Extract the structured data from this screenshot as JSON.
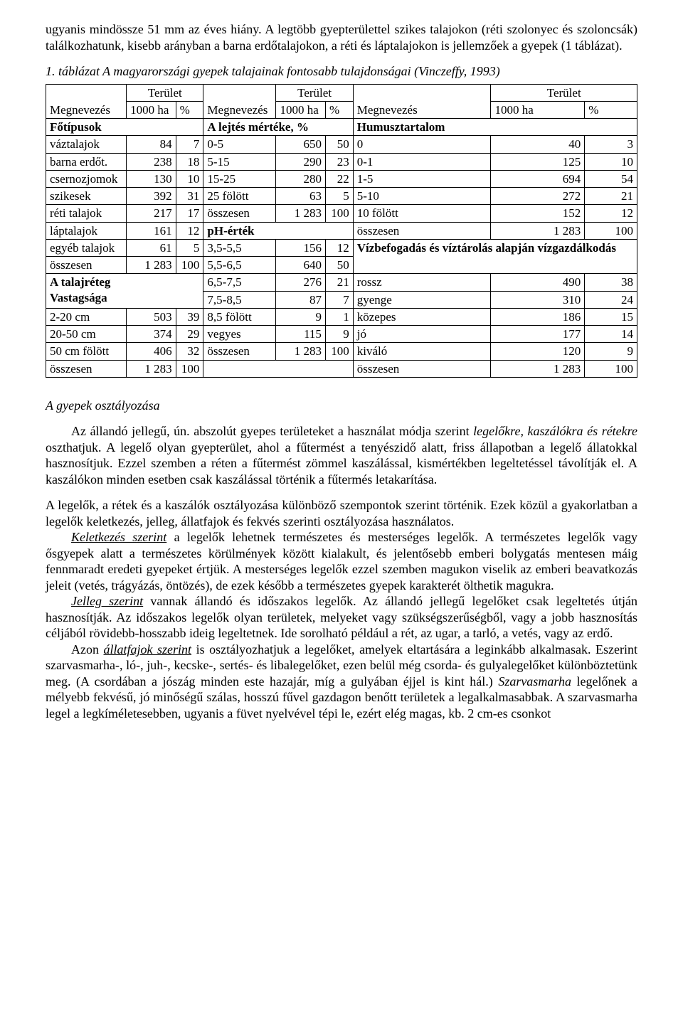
{
  "para_top": "ugyanis mindössze 51 mm az éves hiány. A legtöbb gyepterülettel szikes talajokon (réti szolonyec és szoloncsák) találkozhatunk, kisebb arányban a barna erdőtalajokon, a réti és láptalajokon is jellemzőek a gyepek (1 táblázat).",
  "table_caption": "1. táblázat  A magyarországi gyepek talajainak fontosabb tulajdonságai (Vinczeffy, 1993)",
  "hdr": {
    "terulet": "Terület",
    "megnevezes": "Megnevezés",
    "ezer_ha": "1000 ha",
    "szazalek": "%"
  },
  "sec1": {
    "title": "Főtípusok",
    "rows": [
      [
        "váztalajok",
        "84",
        "7"
      ],
      [
        "barna erdőt.",
        "238",
        "18"
      ],
      [
        "csernozjomok",
        "130",
        "10"
      ],
      [
        "szikesek",
        "392",
        "31"
      ],
      [
        "réti talajok",
        "217",
        "17"
      ],
      [
        "láptalajok",
        "161",
        "12"
      ],
      [
        "egyéb talajok",
        "61",
        "5"
      ],
      [
        "összesen",
        "1 283",
        "100"
      ]
    ],
    "sub_title": "A talajréteg\nVastagsága",
    "sub_rows": [
      [
        "2-20 cm",
        "503",
        "39"
      ],
      [
        "20-50 cm",
        "374",
        "29"
      ],
      [
        "50 cm fölött",
        "406",
        "32"
      ],
      [
        "összesen",
        "1 283",
        "100"
      ]
    ]
  },
  "sec2": {
    "title": "A lejtés mértéke, %",
    "rows": [
      [
        "0-5",
        "650",
        "50"
      ],
      [
        "5-15",
        "290",
        "23"
      ],
      [
        "15-25",
        "280",
        "22"
      ],
      [
        "25 fölött",
        "63",
        "5"
      ],
      [
        "összesen",
        "1 283",
        "100"
      ]
    ],
    "sub_title": "pH-érték",
    "sub_rows": [
      [
        "3,5-5,5",
        "156",
        "12"
      ],
      [
        "5,5-6,5",
        "640",
        "50"
      ],
      [
        "6,5-7,5",
        "276",
        "21"
      ],
      [
        "7,5-8,5",
        "87",
        "7"
      ],
      [
        "8,5 fölött",
        "9",
        "1"
      ],
      [
        "vegyes",
        "115",
        "9"
      ],
      [
        "összesen",
        "1 283",
        "100"
      ]
    ]
  },
  "sec3": {
    "title": "Humusztartalom",
    "rows": [
      [
        "0",
        "40",
        "3"
      ],
      [
        "0-1",
        "125",
        "10"
      ],
      [
        "1-5",
        "694",
        "54"
      ],
      [
        "5-10",
        "272",
        "21"
      ],
      [
        "10 fölött",
        "152",
        "12"
      ],
      [
        "összesen",
        "1 283",
        "100"
      ]
    ],
    "sub_title": "Vízbefogadás és víztárolás alapján vízgazdálkodás",
    "sub_rows": [
      [
        "rossz",
        "490",
        "38"
      ],
      [
        "gyenge",
        "310",
        "24"
      ],
      [
        "közepes",
        "186",
        "15"
      ],
      [
        "jó",
        "177",
        "14"
      ],
      [
        "kiváló",
        "120",
        "9"
      ],
      [
        "összesen",
        "1 283",
        "100"
      ]
    ]
  },
  "heading2": "A gyepek osztályozása",
  "p1": {
    "pre": "Az állandó jellegű, ún. abszolút gyepes területeket a használat módja szerint ",
    "i1": "legelőkre, kaszálókra és rétekre ",
    "post": "oszthatjuk. A legelő olyan gyepterület, ahol a fűtermést a tenyészidő alatt, friss állapotban a legelő állatokkal hasznosítjuk. Ezzel szemben a réten a fűtermést zömmel kaszálással, kismértékben legeltetéssel távolítják el. A kaszálókon minden esetben csak kaszálással történik a fűtermés letakarítása."
  },
  "p2": "A legelők, a rétek és a kaszálók osztályozása különböző szempontok szerint történik. Ezek közül a gyakorlatban a legelők keletkezés, jelleg, állatfajok és fekvés szerinti osztályozása használatos.",
  "p3": {
    "u": "Keletkezés szerint",
    "rest": " a legelők lehetnek természetes és mesterséges legelők. A természetes legelők vagy ősgyepek alatt a természetes körülmények között kialakult, és jelentősebb emberi bolygatás mentesen máig fennmaradt eredeti gyepeket értjük. A mesterséges legelők ezzel szemben magukon viselik az emberi beavatkozás jeleit (vetés, trágyázás, öntözés), de ezek később a természetes gyepek karakterét ölthetik magukra."
  },
  "p4": {
    "u": "Jelleg szerint",
    "rest": " vannak állandó és időszakos legelők. Az állandó jellegű legelőket csak legeltetés útján hasznosítják. Az időszakos legelők olyan területek, melyeket vagy szükségszerűségből, vagy a jobb hasznosítás céljából rövidebb-hosszabb ideig legeltetnek. Ide sorolható például a rét, az ugar, a tarló, a vetés, vagy az erdő."
  },
  "p5": {
    "pre": "Azon ",
    "u": "állatfajok szerint",
    "mid": " is osztályozhatjuk a legelőket, amelyek eltartására a leginkább alkalmasak. Eszerint szarvasmarha-, ló-, juh-, kecske-, sertés- és libalegelőket, ezen belül még csorda- és gulyalegelőket különböztetünk meg. (A csordában a jószág minden este hazajár, míg a gulyában éjjel is kint hál.) ",
    "i": "Szarvasmarha ",
    "post": "legelőnek a mélyebb fekvésű, jó minőségű szálas, hosszú fűvel gazdagon benőtt területek a legalkalmasabbak. A szarvasmarha legel a legkíméletesebben, ugyanis a füvet nyelvével tépi le, ezért elég magas, kb. 2 cm-es csonkot"
  }
}
